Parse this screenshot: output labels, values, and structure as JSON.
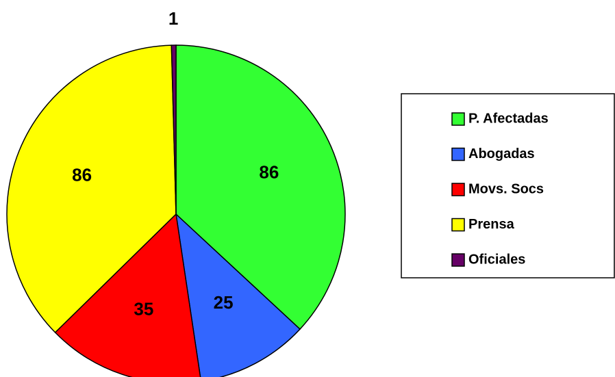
{
  "chart_data": {
    "type": "pie",
    "categories": [
      "P. Afectadas",
      "Abogadas",
      "Movs. Socs",
      "Prensa",
      "Oficiales"
    ],
    "values": [
      86,
      25,
      35,
      86,
      1
    ],
    "colors": [
      "#33ff33",
      "#3366ff",
      "#ff0000",
      "#ffff00",
      "#660066"
    ],
    "legend": "right"
  }
}
